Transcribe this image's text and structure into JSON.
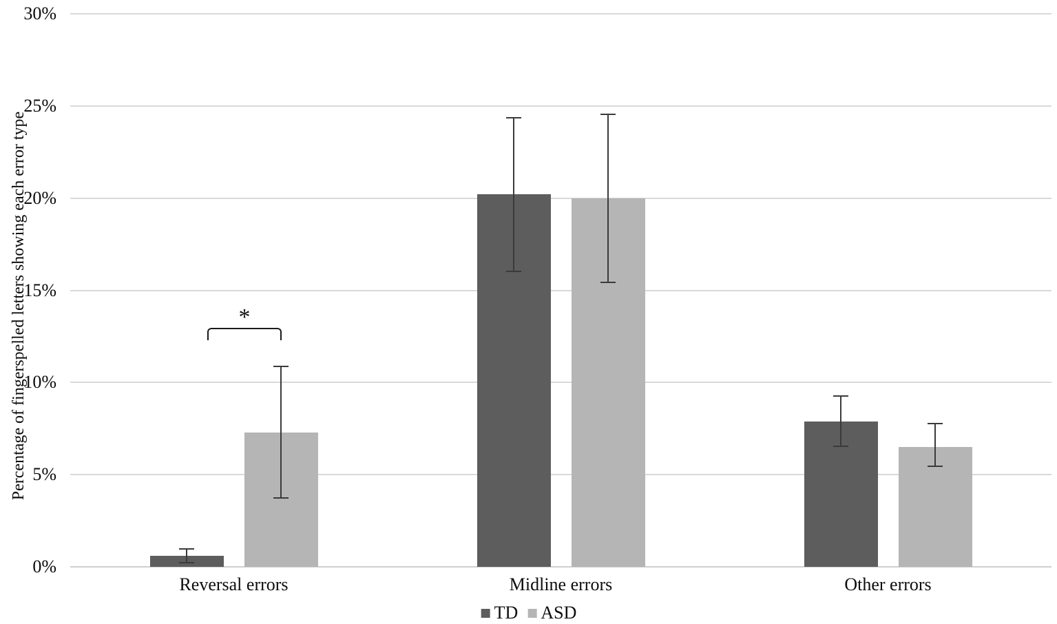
{
  "figure": {
    "background": "#ffffff",
    "text_color": "#0d0d0d"
  },
  "chart_data": {
    "type": "bar",
    "title": "",
    "categories": [
      "Reversal errors",
      "Midline errors",
      "Other errors"
    ],
    "series": [
      {
        "name": "TD",
        "color": "#5d5d5d",
        "values": [
          0.6,
          20.2,
          7.9
        ],
        "error_low": [
          0.2,
          16.0,
          6.5
        ],
        "error_high": [
          1.0,
          24.4,
          9.3
        ]
      },
      {
        "name": "ASD",
        "color": "#b5b5b5",
        "values": [
          7.3,
          20.0,
          6.5
        ],
        "error_low": [
          3.7,
          15.4,
          5.4
        ],
        "error_high": [
          10.9,
          24.6,
          7.8
        ]
      }
    ],
    "xlabel": "",
    "ylabel": "Percentage of fingerspelled letters showing each error type",
    "ylim": [
      0,
      30
    ],
    "ytick_step": 5,
    "yticks": [
      "0%",
      "5%",
      "10%",
      "15%",
      "20%",
      "25%",
      "30%"
    ],
    "grid": true,
    "gridline_color": "#d9d9d9",
    "error_bar_color": "#3a3a3a",
    "legend_position": "bottom",
    "legend": [
      "TD",
      "ASD"
    ],
    "annotation": {
      "label": "*",
      "category": "Reversal errors",
      "between": [
        "TD",
        "ASD"
      ],
      "color": "#1a1a1a"
    }
  }
}
